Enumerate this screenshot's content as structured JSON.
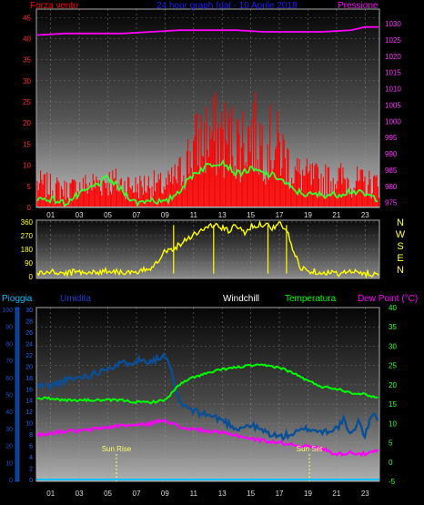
{
  "colors": {
    "wind": "#ff0000",
    "gust_fill": "#ff0000",
    "pressure": "#ff00ff",
    "avg_wind": "#33ff33",
    "direction": "#ffff00",
    "humidity": "#0a4f96",
    "temperature": "#00ff00",
    "dew_point": "#ff00ff",
    "rain": "#00bfff",
    "sun": "#ffff66",
    "grid": "#9a9a9a"
  },
  "chart_data": [
    {
      "type": "line",
      "title": "24 hour graph (dal - 10 Aprile 2018",
      "left_label": "Forza vento",
      "right_label": "Pressione",
      "ylim": [
        0,
        47
      ],
      "y_ticks": [
        "0",
        "5",
        "10",
        "15",
        "20",
        "25",
        "30",
        "35",
        "40",
        "45"
      ],
      "y2lim": [
        973.5,
        1034.5
      ],
      "y2_ticks": [
        "975",
        "980",
        "985",
        "990",
        "995",
        "1000",
        "1005",
        "1010",
        "1015",
        "1020",
        "1025",
        "1030"
      ],
      "x_ticks": [
        "01",
        "03",
        "05",
        "07",
        "09",
        "11",
        "13",
        "15",
        "17",
        "19",
        "21",
        "23"
      ],
      "series": [
        {
          "key": "wind_gust",
          "x": [
            0,
            1,
            2,
            3,
            4,
            5,
            6,
            7,
            8,
            9,
            10,
            11,
            12,
            13,
            14,
            15,
            16,
            17,
            18,
            19,
            20,
            21,
            22,
            23,
            24
          ],
          "values": [
            8,
            7,
            6,
            7,
            8,
            9,
            8,
            7,
            8,
            7,
            11,
            20,
            24,
            24,
            22,
            25,
            22,
            20,
            12,
            10,
            9,
            10,
            9,
            8,
            8
          ]
        },
        {
          "key": "wind_avg",
          "x": [
            0,
            1,
            2,
            3,
            4,
            5,
            6,
            7,
            8,
            9,
            10,
            11,
            12,
            13,
            14,
            15,
            16,
            17,
            18,
            19,
            20,
            21,
            22,
            23,
            24
          ],
          "values": [
            2,
            2,
            1,
            3,
            5,
            7,
            4,
            1,
            2,
            1,
            4,
            8,
            10,
            11,
            8,
            9,
            8,
            7,
            4,
            3,
            3,
            3,
            4,
            3,
            2
          ]
        },
        {
          "key": "pressure",
          "x": [
            0,
            2,
            4,
            6,
            8,
            10,
            12,
            14,
            16,
            18,
            20,
            22,
            23,
            24
          ],
          "values": [
            1026.5,
            1027,
            1027,
            1027,
            1027.5,
            1028,
            1028,
            1028,
            1027.5,
            1027.5,
            1027.5,
            1028,
            1029,
            1029
          ]
        }
      ]
    },
    {
      "type": "line",
      "right_label": "N W S E N",
      "right_letters": [
        "N",
        "W",
        "S",
        "E",
        "N"
      ],
      "ylim": [
        0,
        360
      ],
      "y_ticks": [
        "0",
        "90",
        "180",
        "270",
        "360"
      ],
      "series": [
        {
          "key": "wind_direction",
          "x": [
            0,
            1,
            2,
            3,
            4,
            5,
            6,
            7,
            7.5,
            8,
            8.5,
            9,
            9.5,
            10,
            10.5,
            11,
            11.5,
            12,
            12.5,
            13,
            13.5,
            14,
            14.5,
            15,
            15.5,
            16,
            16.5,
            17,
            17.5,
            18,
            18.5,
            19,
            20,
            21,
            22,
            23,
            24
          ],
          "values": [
            20,
            30,
            20,
            35,
            25,
            40,
            30,
            20,
            40,
            60,
            110,
            170,
            180,
            210,
            250,
            280,
            300,
            330,
            340,
            320,
            300,
            340,
            290,
            330,
            340,
            350,
            320,
            350,
            310,
            160,
            60,
            40,
            30,
            20,
            30,
            20,
            15
          ]
        }
      ]
    },
    {
      "type": "line",
      "labels": {
        "rain": "Pioggia",
        "humidity": "Umidita",
        "windchill": "Windchill",
        "temperature": "Temperatura",
        "dew_point": "Dew Point (°C)"
      },
      "ylim": [
        -5,
        40
      ],
      "y_ticks_temp": [
        "-5",
        "0",
        "5",
        "10",
        "15",
        "20",
        "25",
        "30",
        "35",
        "40"
      ],
      "y_ticks_rain": [
        "0",
        "2",
        "4",
        "6",
        "8",
        "10",
        "12",
        "14",
        "16",
        "18",
        "20",
        "22",
        "24",
        "26",
        "28",
        "30"
      ],
      "y_ticks_hum": [
        "0",
        "10",
        "20",
        "30",
        "40",
        "50",
        "60",
        "70",
        "80",
        "90",
        "100"
      ],
      "annotations": [
        {
          "label": "Sun Rise",
          "x": 5.6
        },
        {
          "label": "Sun Set",
          "x": 19.1
        }
      ],
      "series": [
        {
          "key": "humidity",
          "axis": "humidity",
          "x": [
            0,
            1,
            2,
            3,
            4,
            5,
            6,
            7,
            8,
            9,
            9.5,
            10,
            11,
            12,
            13,
            14,
            15,
            16,
            17,
            18,
            19,
            20,
            21,
            21.5,
            22,
            22.5,
            23,
            23.5,
            24
          ],
          "values": [
            55,
            55,
            58,
            60,
            62,
            66,
            68,
            70,
            70,
            72,
            62,
            45,
            40,
            38,
            35,
            30,
            32,
            28,
            25,
            27,
            30,
            28,
            30,
            35,
            25,
            35,
            25,
            40,
            35
          ]
        },
        {
          "key": "temperature",
          "axis": "temp",
          "x": [
            0,
            1,
            2,
            3,
            4,
            5,
            6,
            7,
            8,
            9,
            10,
            11,
            12,
            13,
            14,
            15,
            16,
            17,
            18,
            19,
            20,
            21,
            22,
            23,
            24
          ],
          "values": [
            16.5,
            16.5,
            16,
            16,
            16,
            16,
            16,
            15.5,
            15.5,
            16,
            20,
            22,
            23,
            24,
            24.5,
            25,
            25,
            24.5,
            23,
            21,
            19.5,
            19,
            18,
            17.5,
            16.5
          ]
        },
        {
          "key": "dew_point",
          "axis": "temp",
          "x": [
            0,
            1,
            2,
            3,
            4,
            5,
            6,
            7,
            8,
            9,
            10,
            11,
            12,
            13,
            14,
            15,
            16,
            17,
            18,
            19,
            20,
            21,
            22,
            23,
            24
          ],
          "values": [
            7,
            7.5,
            8,
            8,
            8.5,
            9,
            9.5,
            9.5,
            10,
            11,
            9,
            8.5,
            8,
            7.5,
            7,
            6,
            5.5,
            5,
            4.5,
            4,
            3.5,
            2,
            2.5,
            2,
            3
          ]
        },
        {
          "key": "rain",
          "axis": "rain",
          "x": [
            0,
            24
          ],
          "values": [
            0,
            0
          ]
        }
      ]
    }
  ]
}
